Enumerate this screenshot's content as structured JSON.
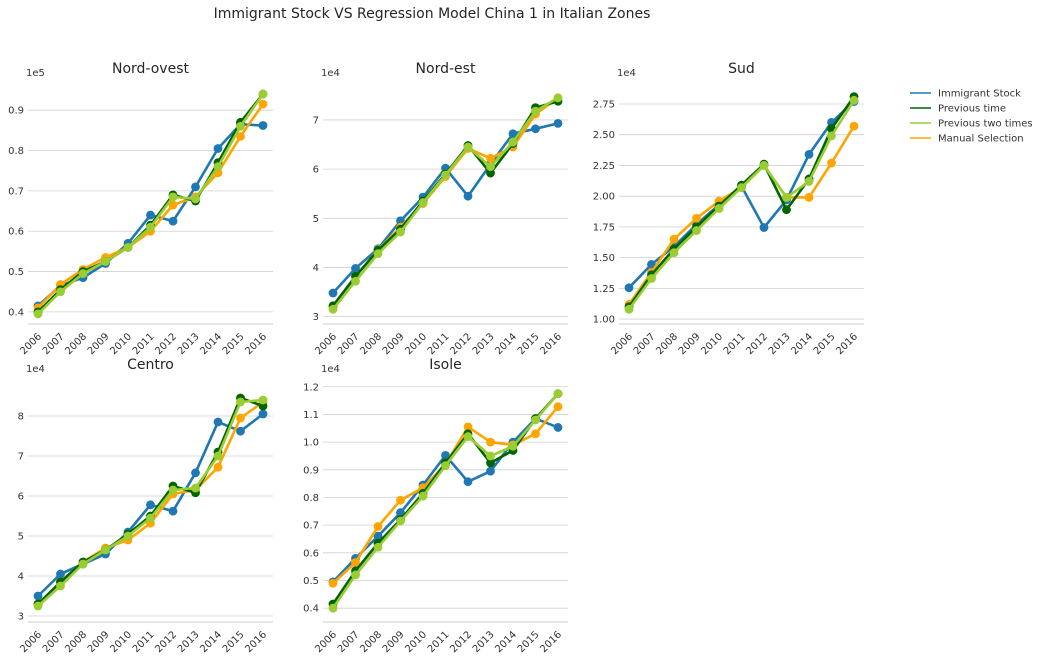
{
  "title": "Immigrant Stock VS Regression Model China 1 in Italian Zones",
  "legend": {
    "position": "right",
    "items": [
      {
        "label": "Immigrant Stock",
        "color": "#1f77b4"
      },
      {
        "label": "Previous time",
        "color": "#006400"
      },
      {
        "label": "Previous two times",
        "color": "#9acd32"
      },
      {
        "label": "Manual Selection",
        "color": "#ffa500"
      }
    ]
  },
  "chart_data": [
    {
      "type": "line",
      "title": "Nord-ovest",
      "multiplier": "1e5",
      "grid": "horizontal",
      "categories": [
        "2006",
        "2007",
        "2008",
        "2009",
        "2010",
        "2011",
        "2012",
        "2013",
        "2014",
        "2015",
        "2016"
      ],
      "ylim": [
        0.37,
        0.955
      ],
      "yticks": [
        {
          "v": 0.4,
          "l": "0.4"
        },
        {
          "v": 0.5,
          "l": "0.5"
        },
        {
          "v": 0.6,
          "l": "0.6"
        },
        {
          "v": 0.7,
          "l": "0.7"
        },
        {
          "v": 0.8,
          "l": "0.8"
        },
        {
          "v": 0.9,
          "l": "0.9"
        }
      ],
      "series": [
        {
          "name": "Immigrant Stock",
          "values": [
            0.415,
            0.465,
            0.485,
            0.52,
            0.57,
            0.64,
            0.625,
            0.71,
            0.805,
            0.865,
            0.862
          ]
        },
        {
          "name": "Previous time",
          "values": [
            0.4,
            0.455,
            0.5,
            0.525,
            0.56,
            0.615,
            0.69,
            0.675,
            0.77,
            0.87,
            0.94
          ]
        },
        {
          "name": "Previous two times",
          "values": [
            0.395,
            0.45,
            0.495,
            0.525,
            0.56,
            0.61,
            0.685,
            0.68,
            0.76,
            0.86,
            0.94
          ]
        },
        {
          "name": "Manual Selection",
          "values": [
            0.41,
            0.468,
            0.505,
            0.535,
            0.56,
            0.6,
            0.665,
            0.685,
            0.745,
            0.835,
            0.915
          ]
        }
      ]
    },
    {
      "type": "line",
      "title": "Nord-est",
      "multiplier": "1e4",
      "grid": "horizontal",
      "categories": [
        "2006",
        "2007",
        "2008",
        "2009",
        "2010",
        "2011",
        "2012",
        "2013",
        "2014",
        "2015",
        "2016"
      ],
      "ylim": [
        2.85,
        7.65
      ],
      "yticks": [
        {
          "v": 3,
          "l": "3"
        },
        {
          "v": 4,
          "l": "4"
        },
        {
          "v": 5,
          "l": "5"
        },
        {
          "v": 6,
          "l": "6"
        },
        {
          "v": 7,
          "l": "7"
        }
      ],
      "series": [
        {
          "name": "Immigrant Stock",
          "values": [
            3.48,
            3.98,
            4.38,
            4.95,
            5.43,
            6.02,
            5.45,
            6.1,
            6.72,
            6.82,
            6.93
          ]
        },
        {
          "name": "Previous time",
          "values": [
            3.22,
            3.82,
            4.35,
            4.78,
            5.35,
            5.9,
            6.48,
            5.92,
            6.52,
            7.25,
            7.38
          ]
        },
        {
          "name": "Previous two times",
          "values": [
            3.15,
            3.72,
            4.28,
            4.72,
            5.32,
            5.88,
            6.45,
            6.05,
            6.55,
            7.18,
            7.45
          ]
        },
        {
          "name": "Manual Selection",
          "values": [
            3.2,
            3.82,
            4.36,
            4.82,
            5.3,
            5.85,
            6.42,
            6.22,
            6.45,
            7.12,
            7.45
          ]
        }
      ]
    },
    {
      "type": "line",
      "title": "Sud",
      "multiplier": "1e4",
      "grid": "horizontal",
      "categories": [
        "2006",
        "2007",
        "2008",
        "2009",
        "2010",
        "2011",
        "2012",
        "2013",
        "2014",
        "2015",
        "2016"
      ],
      "ylim": [
        0.96,
        2.88
      ],
      "yticks": [
        {
          "v": 1.0,
          "l": "1.00"
        },
        {
          "v": 1.25,
          "l": "1.25"
        },
        {
          "v": 1.5,
          "l": "1.50"
        },
        {
          "v": 1.75,
          "l": "1.75"
        },
        {
          "v": 2.0,
          "l": "2.00"
        },
        {
          "v": 2.25,
          "l": "2.25"
        },
        {
          "v": 2.5,
          "l": "2.50"
        },
        {
          "v": 2.75,
          "l": "2.75"
        }
      ],
      "series": [
        {
          "name": "Immigrant Stock",
          "values": [
            1.255,
            1.445,
            1.59,
            1.77,
            1.93,
            2.08,
            1.745,
            1.97,
            2.34,
            2.6,
            2.77
          ]
        },
        {
          "name": "Previous time",
          "values": [
            1.1,
            1.36,
            1.57,
            1.75,
            1.92,
            2.09,
            2.26,
            1.89,
            2.14,
            2.55,
            2.81
          ]
        },
        {
          "name": "Previous two times",
          "values": [
            1.08,
            1.33,
            1.54,
            1.72,
            1.9,
            2.07,
            2.25,
            1.99,
            2.12,
            2.49,
            2.78
          ]
        },
        {
          "name": "Manual Selection",
          "values": [
            1.12,
            1.38,
            1.65,
            1.82,
            1.96,
            2.07,
            2.25,
            1.99,
            1.99,
            2.27,
            2.57
          ]
        }
      ]
    },
    {
      "type": "line",
      "title": "Centro",
      "multiplier": "1e4",
      "grid": "horizontal",
      "categories": [
        "2006",
        "2007",
        "2008",
        "2009",
        "2010",
        "2011",
        "2012",
        "2013",
        "2014",
        "2015",
        "2016"
      ],
      "ylim": [
        2.85,
        8.8
      ],
      "yticks": [
        {
          "v": 3,
          "l": "3"
        },
        {
          "v": 4,
          "l": "4"
        },
        {
          "v": 5,
          "l": "5"
        },
        {
          "v": 6,
          "l": "6"
        },
        {
          "v": 7,
          "l": "7"
        },
        {
          "v": 8,
          "l": "8"
        }
      ],
      "series": [
        {
          "name": "Immigrant Stock",
          "values": [
            3.5,
            4.05,
            4.3,
            4.55,
            5.1,
            5.78,
            5.62,
            6.58,
            7.85,
            7.62,
            8.05
          ]
        },
        {
          "name": "Previous time",
          "values": [
            3.3,
            3.85,
            4.35,
            4.65,
            5.05,
            5.5,
            6.25,
            6.08,
            7.1,
            8.45,
            8.25
          ]
        },
        {
          "name": "Previous two times",
          "values": [
            3.25,
            3.75,
            4.3,
            4.65,
            5.0,
            5.45,
            6.15,
            6.2,
            7.0,
            8.35,
            8.4
          ]
        },
        {
          "name": "Manual Selection",
          "values": [
            3.3,
            3.85,
            4.35,
            4.7,
            4.9,
            5.32,
            6.05,
            6.15,
            6.72,
            7.95,
            8.35
          ]
        }
      ]
    },
    {
      "type": "line",
      "title": "Isole",
      "multiplier": "1e4",
      "grid": "horizontal",
      "categories": [
        "2006",
        "2007",
        "2008",
        "2009",
        "2010",
        "2011",
        "2012",
        "2013",
        "2014",
        "2015",
        "2016"
      ],
      "ylim": [
        0.35,
        1.21
      ],
      "yticks": [
        {
          "v": 0.4,
          "l": "0.4"
        },
        {
          "v": 0.5,
          "l": "0.5"
        },
        {
          "v": 0.6,
          "l": "0.6"
        },
        {
          "v": 0.7,
          "l": "0.7"
        },
        {
          "v": 0.8,
          "l": "0.8"
        },
        {
          "v": 0.9,
          "l": "0.9"
        },
        {
          "v": 1.0,
          "l": "1.0"
        },
        {
          "v": 1.1,
          "l": "1.1"
        },
        {
          "v": 1.2,
          "l": "1.2"
        }
      ],
      "series": [
        {
          "name": "Immigrant Stock",
          "values": [
            0.495,
            0.58,
            0.66,
            0.745,
            0.845,
            0.952,
            0.857,
            0.895,
            1.0,
            1.085,
            1.053
          ]
        },
        {
          "name": "Previous time",
          "values": [
            0.415,
            0.535,
            0.635,
            0.72,
            0.815,
            0.925,
            1.03,
            0.925,
            0.97,
            1.085,
            1.175
          ]
        },
        {
          "name": "Previous two times",
          "values": [
            0.4,
            0.52,
            0.62,
            0.715,
            0.805,
            0.915,
            1.02,
            0.95,
            0.985,
            1.08,
            1.175
          ]
        },
        {
          "name": "Manual Selection",
          "values": [
            0.49,
            0.565,
            0.695,
            0.79,
            0.835,
            0.92,
            1.055,
            1.0,
            0.99,
            1.03,
            1.128
          ]
        }
      ]
    }
  ]
}
